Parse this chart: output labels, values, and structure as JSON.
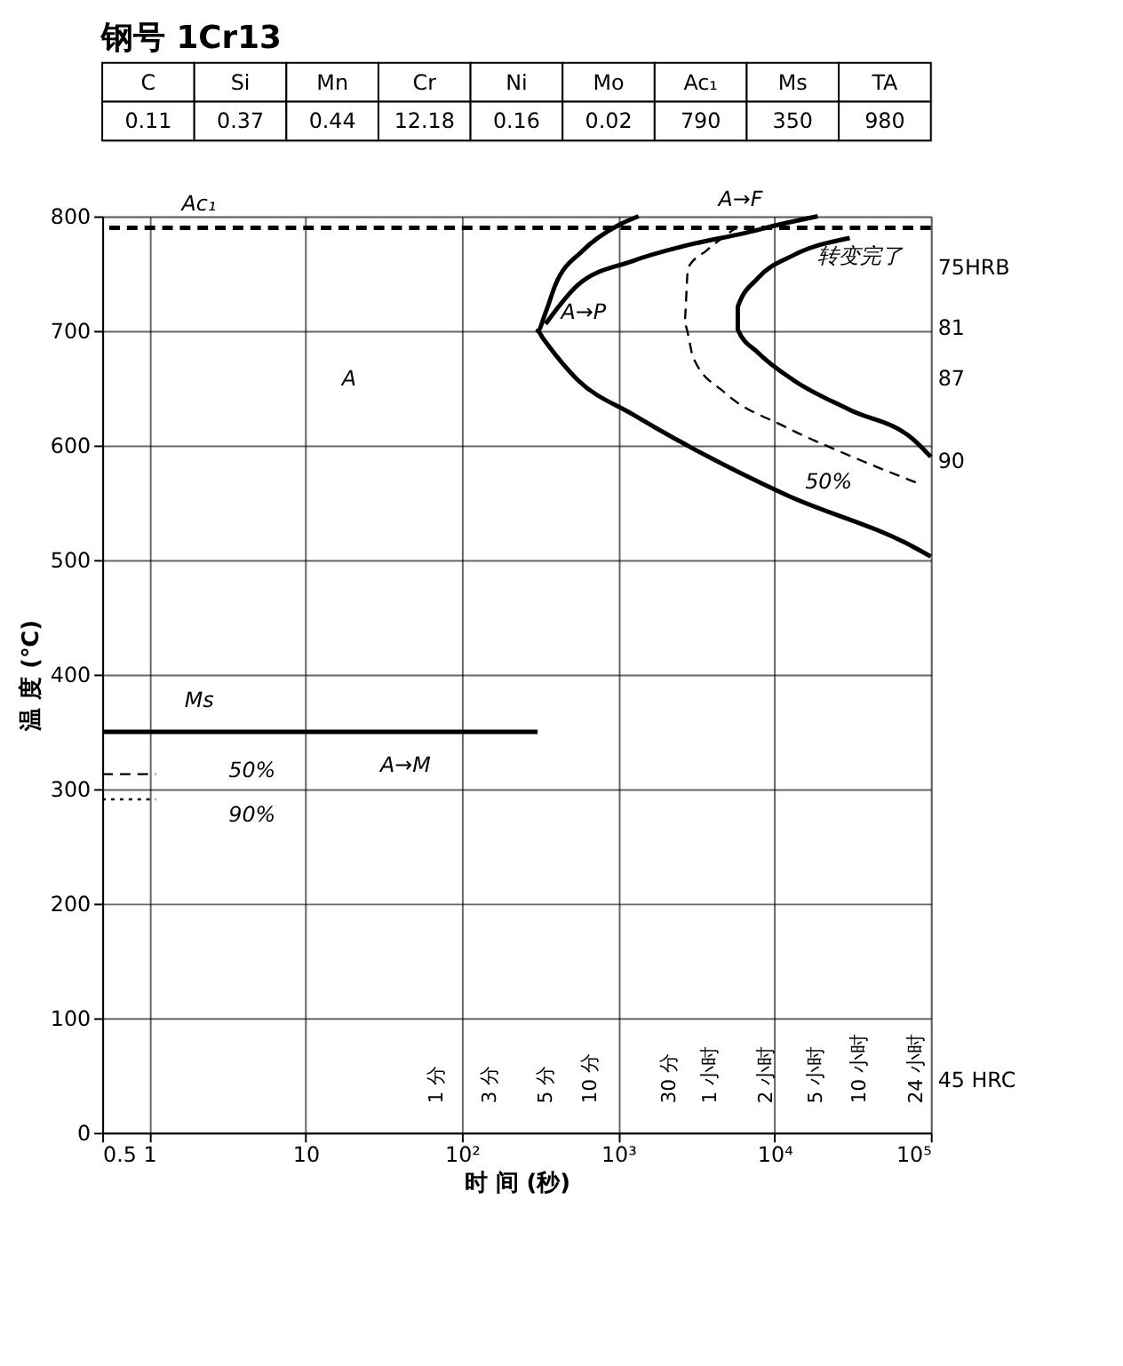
{
  "chart_data": [
    {
      "type": "other",
      "title": "钢号 1Cr13",
      "categories": [
        "C",
        "Si",
        "Mn",
        "Cr",
        "Ni",
        "Mo",
        "Ac₁",
        "Ms",
        "TA"
      ],
      "values": [
        0.11,
        0.37,
        0.44,
        12.18,
        0.16,
        0.02,
        790,
        350,
        980
      ],
      "data_labels": true
    },
    {
      "type": "line",
      "xlabel": "时 间 (秒)",
      "ylabel": "温 度 (℃)",
      "log": "x",
      "grid": true,
      "xlim": [
        0.5,
        100000
      ],
      "ylim": [
        0,
        800
      ],
      "xticks": [
        0.5,
        1,
        10,
        {
          "value": 100,
          "label": "10²"
        },
        {
          "value": 1000,
          "label": "10³"
        },
        {
          "value": 10000,
          "label": "10⁴"
        },
        {
          "value": 100000,
          "label": "10⁵"
        }
      ],
      "yticks": [
        0,
        100,
        200,
        300,
        400,
        500,
        600,
        700,
        800
      ],
      "series": [
        {
          "color": "#000000",
          "line_style": "solid",
          "x": [
            1350,
            1030,
            593,
            396,
            343,
            305,
            328,
            552,
            1240,
            3030,
            11800,
            75900,
            100000
          ],
          "values": [
            800,
            793,
            770,
            740,
            716,
            700,
            694,
            657,
            627,
            597,
            557,
            512,
            503
          ]
        },
        {
          "color": "#000000",
          "line_style": "solid",
          "x": [
            343,
            552,
            1240,
            3030,
            6310,
            10900,
            18900
          ],
          "values": [
            706,
            740,
            761,
            776,
            785,
            793,
            800
          ]
        },
        {
          "color": "#000000",
          "line_style": "dashed",
          "x": [
            5820,
            3670,
            2800,
            2650,
            3030,
            4810,
            11800,
            30300,
            82400
          ],
          "values": [
            791,
            770,
            755,
            706,
            676,
            646,
            616,
            591,
            567
          ]
        },
        {
          "color": "#000000",
          "line_style": "solid",
          "x": [
            30300,
            13200,
            7830,
            5820,
            5820,
            7830,
            13200,
            30300,
            75900,
            100000
          ],
          "values": [
            781,
            766,
            746,
            721,
            701,
            681,
            657,
            631,
            606,
            590
          ]
        },
        {
          "color": "#000000",
          "line_style": "solid",
          "x": [
            0.5,
            305
          ],
          "values": [
            350,
            350
          ]
        },
        {
          "color": "#000000",
          "line_style": "dashed",
          "x": [
            0.5,
            1.1
          ],
          "values": [
            313,
            313
          ]
        },
        {
          "color": "#000000",
          "line_style": "dotted",
          "x": [
            0.5,
            1.1
          ],
          "values": [
            291,
            291
          ]
        }
      ],
      "ref_lines": [
        {
          "axis": "y",
          "value": 790,
          "label": "Ac₁",
          "line_style": "dashed",
          "color": "#000000"
        }
      ],
      "annotations": [
        "A",
        "A→P",
        "A→F",
        "Ms",
        "50%",
        "90%",
        "A→M",
        "50%",
        "转变完了",
        "1 分",
        "3 分",
        "5 分",
        "10 分",
        "30 分",
        "1 小时",
        "2 小时",
        "5 小时",
        "10 小时",
        "24 小时",
        "75HRB",
        "81",
        "87",
        "90",
        "45 HRC"
      ]
    }
  ]
}
